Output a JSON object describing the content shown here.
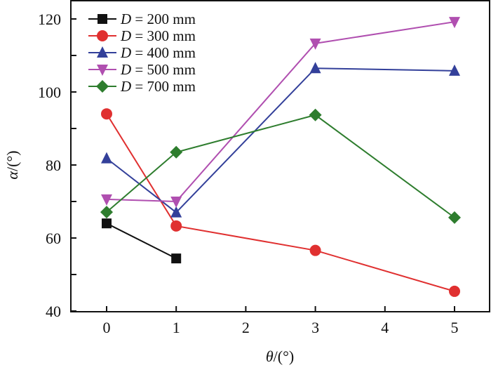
{
  "chart_data": {
    "type": "line",
    "title": "",
    "xlabel": "θ/(°)",
    "xlabel_var": "θ",
    "xlabel_unit": "/(°)",
    "ylabel": "α/(°)",
    "ylabel_var": "α",
    "ylabel_unit": "/(°)",
    "xlim": [
      -1.5,
      5.5
    ],
    "ylim": [
      40,
      124
    ],
    "xticks": [
      0,
      1,
      2,
      3,
      4,
      5
    ],
    "xtick_labels": [
      "0",
      "1",
      "2",
      "3",
      "4",
      "5"
    ],
    "yticks": [
      40,
      60,
      80,
      100,
      120
    ],
    "ytick_labels": [
      "40",
      "60",
      "80",
      "100",
      "120"
    ],
    "yminor_ticks": [
      50,
      70,
      90,
      110
    ],
    "grid": false,
    "legend_position": "top-left",
    "series": [
      {
        "name": "D = 200 mm",
        "var": "D",
        "label_rest": " = 200 mm",
        "color": "#111111",
        "marker": "square",
        "x": [
          0,
          1
        ],
        "y": [
          64.0,
          54.4
        ]
      },
      {
        "name": "D = 300 mm",
        "var": "D",
        "label_rest": " = 300 mm",
        "color": "#e03030",
        "marker": "circle",
        "x": [
          0,
          1,
          3,
          5
        ],
        "y": [
          94.0,
          63.3,
          56.6,
          45.4
        ]
      },
      {
        "name": "D = 400 mm",
        "var": "D",
        "label_rest": " = 400 mm",
        "color": "#33409a",
        "marker": "triangle-up",
        "x": [
          0,
          1,
          3,
          5
        ],
        "y": [
          81.8,
          67.0,
          106.5,
          105.8
        ]
      },
      {
        "name": "D = 500 mm",
        "var": "D",
        "label_rest": " = 500 mm",
        "color": "#b04fb0",
        "marker": "triangle-down",
        "x": [
          0,
          1,
          3,
          5
        ],
        "y": [
          70.6,
          70.0,
          113.3,
          119.2
        ]
      },
      {
        "name": "D = 700 mm",
        "var": "D",
        "label_rest": " = 700 mm",
        "color": "#2e7d2e",
        "marker": "diamond",
        "x": [
          0,
          1,
          3,
          5
        ],
        "y": [
          67.1,
          83.5,
          93.7,
          65.6
        ]
      }
    ]
  }
}
